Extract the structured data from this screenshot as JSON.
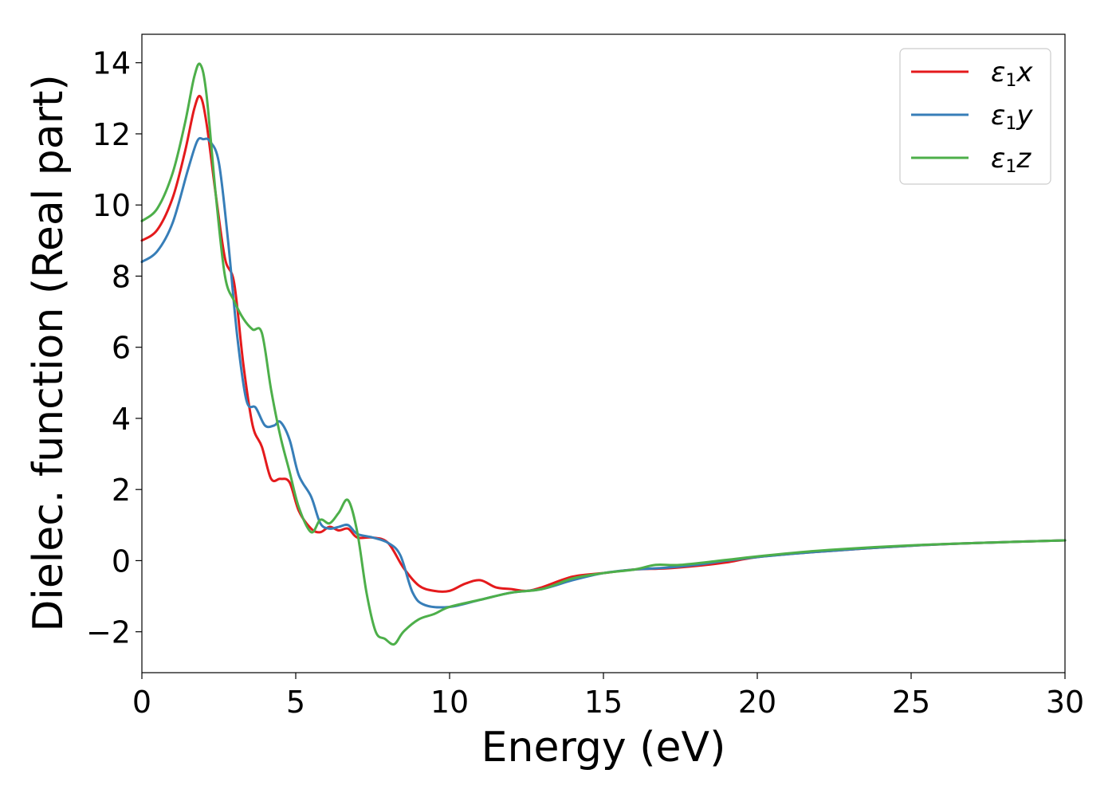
{
  "chart_data": {
    "type": "line",
    "xlabel": "Energy (eV)",
    "ylabel": "Dielec. function (Real part)",
    "xlim": [
      0,
      30
    ],
    "ylim": [
      -3.15,
      14.8
    ],
    "xticks": [
      0,
      5,
      10,
      15,
      20,
      25,
      30
    ],
    "xtick_labels": [
      "0",
      "5",
      "10",
      "15",
      "20",
      "25",
      "30"
    ],
    "yticks": [
      -2,
      0,
      2,
      4,
      6,
      8,
      10,
      12,
      14
    ],
    "ytick_labels": [
      "−2",
      "0",
      "2",
      "4",
      "6",
      "8",
      "10",
      "12",
      "14"
    ],
    "grid": false,
    "legend_position": "top-right",
    "series": [
      {
        "name": "ε1x",
        "legend_main": "ε",
        "legend_sub": "1",
        "legend_var": "x",
        "color": "#e41a1c",
        "x": [
          0,
          0.5,
          1.0,
          1.4,
          1.7,
          1.9,
          2.1,
          2.4,
          2.7,
          3.0,
          3.3,
          3.6,
          3.9,
          4.2,
          4.5,
          4.8,
          5.1,
          5.5,
          5.8,
          6.1,
          6.4,
          6.7,
          7.0,
          7.5,
          8.0,
          8.5,
          9.0,
          9.5,
          10.0,
          10.5,
          11.0,
          11.5,
          12.0,
          12.5,
          13.0,
          14.0,
          15.0,
          16.0,
          17.0,
          18.0,
          19.0,
          20.0,
          22.0,
          25.0,
          28.0,
          30.0
        ],
        "y": [
          9.0,
          9.3,
          10.2,
          11.5,
          12.7,
          13.05,
          12.3,
          10.3,
          8.5,
          7.8,
          5.5,
          3.8,
          3.2,
          2.3,
          2.3,
          2.2,
          1.4,
          0.9,
          0.8,
          0.95,
          0.85,
          0.9,
          0.65,
          0.65,
          0.5,
          -0.2,
          -0.7,
          -0.85,
          -0.85,
          -0.65,
          -0.55,
          -0.75,
          -0.8,
          -0.85,
          -0.75,
          -0.45,
          -0.35,
          -0.25,
          -0.22,
          -0.15,
          -0.05,
          0.1,
          0.25,
          0.42,
          0.52,
          0.57
        ]
      },
      {
        "name": "ε1y",
        "legend_main": "ε",
        "legend_sub": "1",
        "legend_var": "y",
        "color": "#377eb8",
        "x": [
          0,
          0.5,
          1.0,
          1.5,
          1.8,
          2.0,
          2.2,
          2.5,
          2.8,
          3.1,
          3.4,
          3.7,
          4.0,
          4.3,
          4.5,
          4.8,
          5.1,
          5.5,
          5.8,
          6.1,
          6.4,
          6.7,
          7.0,
          7.5,
          8.0,
          8.4,
          8.8,
          9.2,
          10.0,
          11.0,
          12.0,
          13.0,
          14.0,
          15.0,
          16.0,
          17.0,
          18.0,
          19.0,
          20.0,
          22.0,
          25.0,
          28.0,
          30.0
        ],
        "y": [
          8.4,
          8.7,
          9.5,
          11.0,
          11.8,
          11.85,
          11.8,
          11.2,
          9.0,
          6.3,
          4.5,
          4.3,
          3.8,
          3.8,
          3.9,
          3.4,
          2.4,
          1.8,
          1.05,
          0.9,
          0.95,
          1.0,
          0.75,
          0.65,
          0.5,
          0.15,
          -0.9,
          -1.25,
          -1.3,
          -1.1,
          -0.9,
          -0.8,
          -0.55,
          -0.35,
          -0.25,
          -0.2,
          -0.12,
          0.0,
          0.1,
          0.25,
          0.42,
          0.52,
          0.57
        ]
      },
      {
        "name": "ε1z",
        "legend_main": "ε",
        "legend_sub": "1",
        "legend_var": "z",
        "color": "#4daf4a",
        "x": [
          0,
          0.5,
          1.0,
          1.4,
          1.7,
          1.9,
          2.1,
          2.4,
          2.7,
          3.0,
          3.3,
          3.6,
          3.9,
          4.2,
          4.5,
          4.8,
          5.1,
          5.5,
          5.8,
          6.1,
          6.4,
          6.7,
          7.0,
          7.3,
          7.6,
          7.9,
          8.2,
          8.5,
          9.0,
          9.5,
          10.0,
          11.0,
          12.0,
          13.0,
          14.0,
          15.0,
          16.0,
          16.7,
          17.5,
          19.0,
          20.0,
          22.0,
          25.0,
          28.0,
          30.0
        ],
        "y": [
          9.55,
          9.9,
          10.9,
          12.3,
          13.6,
          13.95,
          13.1,
          10.3,
          8.0,
          7.3,
          6.8,
          6.5,
          6.4,
          4.8,
          3.5,
          2.5,
          1.5,
          0.8,
          1.15,
          1.05,
          1.35,
          1.7,
          0.8,
          -0.9,
          -2.0,
          -2.2,
          -2.35,
          -2.0,
          -1.65,
          -1.5,
          -1.3,
          -1.1,
          -0.9,
          -0.8,
          -0.5,
          -0.35,
          -0.25,
          -0.12,
          -0.12,
          0.02,
          0.12,
          0.28,
          0.43,
          0.52,
          0.57
        ]
      }
    ]
  }
}
